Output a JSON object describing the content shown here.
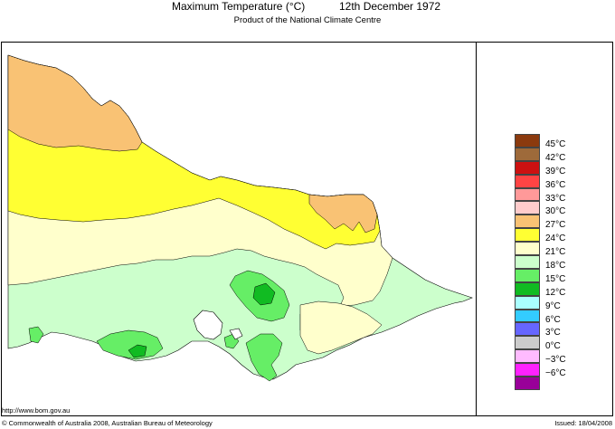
{
  "header": {
    "title": "Maximum Temperature (°C)",
    "date": "12th December 1972",
    "subtitle": "Product of the National Climate Centre"
  },
  "legend": [
    {
      "label": "45°C",
      "color": "#8b3a0e"
    },
    {
      "label": "42°C",
      "color": "#9e6a3a"
    },
    {
      "label": "39°C",
      "color": "#cc1111"
    },
    {
      "label": "36°C",
      "color": "#ff4444"
    },
    {
      "label": "33°C",
      "color": "#ff9999"
    },
    {
      "label": "30°C",
      "color": "#ffcccc"
    },
    {
      "label": "27°C",
      "color": "#f9c274"
    },
    {
      "label": "24°C",
      "color": "#ffff33"
    },
    {
      "label": "21°C",
      "color": "#ffffcc"
    },
    {
      "label": "18°C",
      "color": "#ccffcc"
    },
    {
      "label": "15°C",
      "color": "#66ee66"
    },
    {
      "label": "12°C",
      "color": "#11bb22"
    },
    {
      "label": "9°C",
      "color": "#aaffff"
    },
    {
      "label": "6°C",
      "color": "#33ccff"
    },
    {
      "label": "3°C",
      "color": "#6666ff"
    },
    {
      "label": "0°C",
      "color": "#cccccc"
    },
    {
      "label": "−3°C",
      "color": "#ffbbff"
    },
    {
      "label": "−6°C",
      "color": "#ff22ff"
    },
    {
      "label": "",
      "color": "#990099"
    }
  ],
  "map_colors": {
    "band_27_30": "#f9c274",
    "band_24_27": "#ffff33",
    "band_21_24": "#ffffcc",
    "band_18_21": "#ccffcc",
    "band_15_18": "#66ee66",
    "band_12_15": "#11bb22"
  },
  "footer": {
    "url": "http://www.bom.gov.au",
    "copyright": "© Commonwealth of Australia 2008, Australian Bureau of Meteorology",
    "issued": "Issued: 18/04/2008"
  }
}
